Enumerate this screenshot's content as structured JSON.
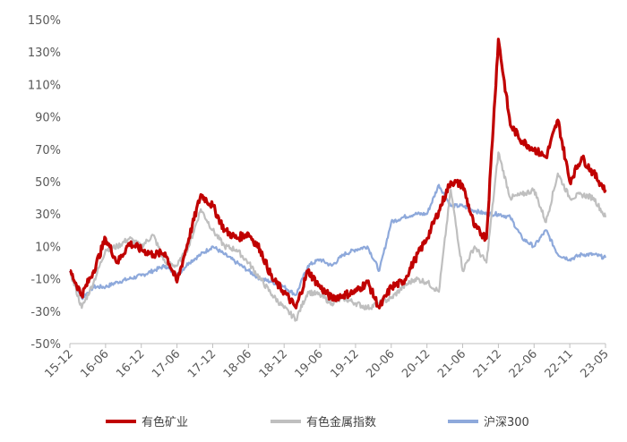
{
  "chart_data": {
    "type": "line",
    "title": "",
    "xlabel": "",
    "ylabel": "",
    "ylim": [
      -50,
      150
    ],
    "y_ticks": [
      "150%",
      "130%",
      "110%",
      "90%",
      "70%",
      "50%",
      "30%",
      "10%",
      "-10%",
      "-30%",
      "-50%"
    ],
    "x_ticks": [
      "15-12",
      "16-06",
      "16-12",
      "17-06",
      "17-12",
      "18-06",
      "18-12",
      "19-06",
      "19-12",
      "20-06",
      "20-12",
      "21-06",
      "21-12",
      "22-06",
      "22-11",
      "23-05"
    ],
    "grid": false,
    "legend_position": "bottom",
    "x": [
      "15-12",
      "16-02",
      "16-04",
      "16-06",
      "16-08",
      "16-10",
      "16-12",
      "17-02",
      "17-04",
      "17-06",
      "17-08",
      "17-10",
      "17-12",
      "18-02",
      "18-04",
      "18-06",
      "18-08",
      "18-10",
      "18-12",
      "19-02",
      "19-04",
      "19-06",
      "19-08",
      "19-10",
      "19-12",
      "20-02",
      "20-04",
      "20-06",
      "20-08",
      "20-10",
      "20-12",
      "21-02",
      "21-04",
      "21-06",
      "21-08",
      "21-10",
      "21-12",
      "22-02",
      "22-04",
      "22-06",
      "22-08",
      "22-10",
      "22-11",
      "23-01",
      "23-03",
      "23-05"
    ],
    "series": [
      {
        "name": "有色矿业",
        "color": "#C00000",
        "values": [
          -5,
          -20,
          -5,
          15,
          0,
          12,
          8,
          5,
          6,
          -12,
          15,
          42,
          35,
          20,
          15,
          18,
          8,
          -10,
          -18,
          -28,
          -5,
          -15,
          -22,
          -20,
          -18,
          -12,
          -28,
          -15,
          -12,
          2,
          15,
          32,
          50,
          48,
          22,
          15,
          138,
          85,
          75,
          70,
          65,
          88,
          50,
          65,
          55,
          45
        ]
      },
      {
        "name": "有色金属指数",
        "color": "#BFBFBF",
        "values": [
          -5,
          -28,
          -12,
          8,
          10,
          15,
          10,
          17,
          0,
          -2,
          10,
          33,
          20,
          10,
          8,
          0,
          -10,
          -20,
          -28,
          -35,
          -18,
          -20,
          -25,
          -22,
          -25,
          -28,
          -25,
          -22,
          -15,
          -10,
          -12,
          -18,
          45,
          -5,
          10,
          0,
          68,
          40,
          42,
          45,
          25,
          55,
          40,
          42,
          40,
          28
        ]
      },
      {
        "name": "沪深300",
        "color": "#8EA9DB",
        "values": [
          -5,
          -22,
          -15,
          -15,
          -12,
          -10,
          -8,
          -5,
          -2,
          -8,
          0,
          5,
          10,
          5,
          0,
          -5,
          -10,
          -12,
          -15,
          -20,
          -2,
          2,
          -2,
          5,
          8,
          10,
          -5,
          25,
          28,
          30,
          30,
          48,
          35,
          35,
          32,
          30,
          30,
          28,
          15,
          10,
          20,
          5,
          2,
          5,
          5,
          3
        ]
      }
    ]
  }
}
